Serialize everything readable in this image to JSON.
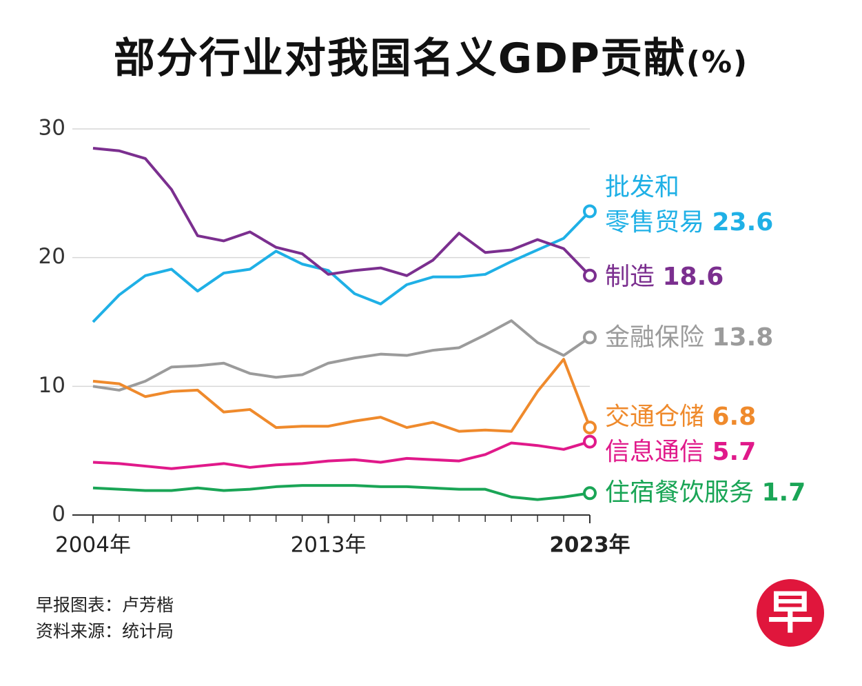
{
  "chart_data": {
    "type": "line",
    "title": "部分行业对我国名义GDP贡献",
    "unit": "(%)",
    "x": [
      2004,
      2005,
      2006,
      2007,
      2008,
      2009,
      2010,
      2011,
      2012,
      2013,
      2014,
      2015,
      2016,
      2017,
      2018,
      2019,
      2020,
      2021,
      2022,
      2023
    ],
    "xlim": [
      2004,
      2023
    ],
    "xticks": [
      {
        "value": 2004,
        "label": "2004年"
      },
      {
        "value": 2013,
        "label": "2013年"
      },
      {
        "value": 2023,
        "label": "2023年"
      }
    ],
    "ylim": [
      0,
      30
    ],
    "yticks": [
      0,
      10,
      20,
      30
    ],
    "grid": true,
    "series": [
      {
        "name": "批发和\n零售贸易",
        "color": "#1fb0e6",
        "values": [
          15.0,
          17.1,
          18.6,
          19.1,
          17.4,
          18.8,
          19.1,
          20.5,
          19.5,
          19.0,
          17.2,
          16.4,
          17.9,
          18.5,
          18.5,
          18.7,
          19.7,
          20.6,
          21.5,
          23.6
        ]
      },
      {
        "name": "制造",
        "color": "#7b2f8f",
        "values": [
          28.5,
          28.3,
          27.7,
          25.3,
          21.7,
          21.3,
          22.0,
          20.8,
          20.3,
          18.7,
          19.0,
          19.2,
          18.6,
          19.8,
          21.9,
          20.4,
          20.6,
          21.4,
          20.7,
          18.6
        ]
      },
      {
        "name": "金融保险",
        "color": "#9b9b9b",
        "values": [
          10.0,
          9.7,
          10.4,
          11.5,
          11.6,
          11.8,
          11.0,
          10.7,
          10.9,
          11.8,
          12.2,
          12.5,
          12.4,
          12.8,
          13.0,
          14.0,
          15.1,
          13.4,
          12.4,
          13.8
        ]
      },
      {
        "name": "交通仓储",
        "color": "#ef8a2c",
        "values": [
          10.4,
          10.2,
          9.2,
          9.6,
          9.7,
          8.0,
          8.2,
          6.8,
          6.9,
          6.9,
          7.3,
          7.6,
          6.8,
          7.2,
          6.5,
          6.6,
          6.5,
          9.6,
          12.1,
          6.8
        ]
      },
      {
        "name": "信息通信",
        "color": "#e0198a",
        "values": [
          4.1,
          4.0,
          3.8,
          3.6,
          3.8,
          4.0,
          3.7,
          3.9,
          4.0,
          4.2,
          4.3,
          4.1,
          4.4,
          4.3,
          4.2,
          4.7,
          5.6,
          5.4,
          5.1,
          5.7
        ]
      },
      {
        "name": "住宿餐饮服务",
        "color": "#1aa556",
        "values": [
          2.1,
          2.0,
          1.9,
          1.9,
          2.1,
          1.9,
          2.0,
          2.2,
          2.3,
          2.3,
          2.3,
          2.2,
          2.2,
          2.1,
          2.0,
          2.0,
          1.4,
          1.2,
          1.4,
          1.7
        ]
      }
    ]
  },
  "footer": {
    "credit": "早报图表：卢芳楷",
    "source": "资料来源：统计局",
    "logo_text": "早"
  }
}
